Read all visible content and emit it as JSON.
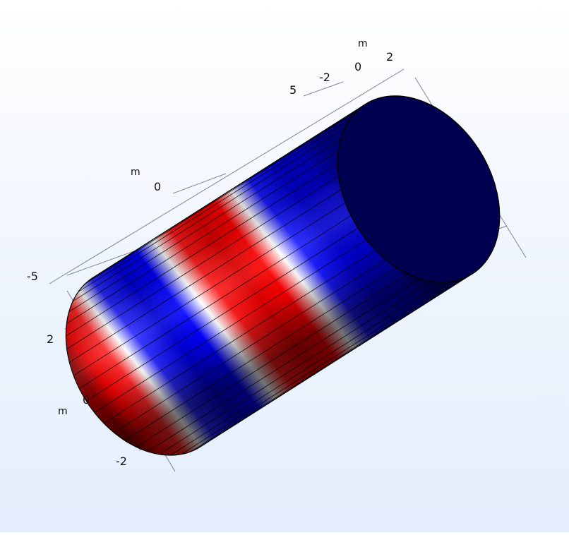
{
  "axes": {
    "top": {
      "ticks": [
        "-2",
        "0",
        "2"
      ],
      "unit": "m"
    },
    "left": {
      "ticks": [
        "-5",
        "0",
        "5"
      ],
      "unit": "m"
    },
    "bottom": {
      "ticks": [
        "2",
        "0",
        "-2"
      ],
      "unit": "m"
    }
  },
  "colors": {
    "background": "#eef4fd",
    "endcap": "#000050",
    "wave_red": "#ff0000",
    "wave_blue": "#0000e6",
    "wave_white": "#ffffff"
  },
  "plot_type": "3D surface plot (cylinder, wave pattern colormap)"
}
